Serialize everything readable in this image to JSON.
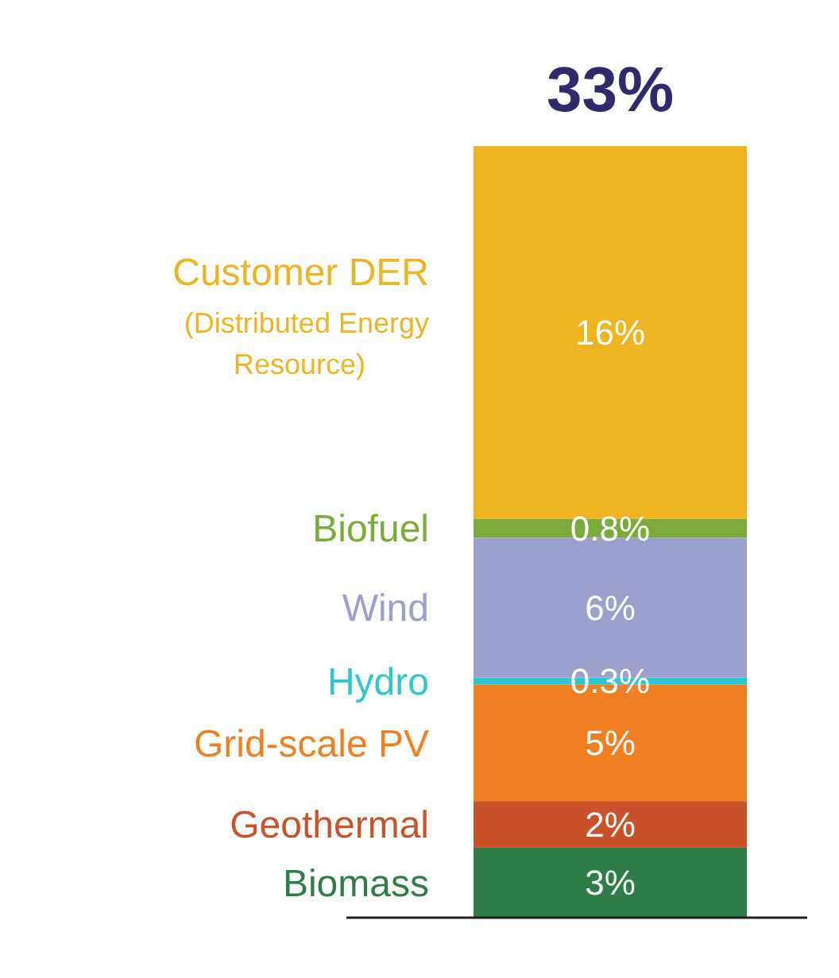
{
  "chart_data": {
    "type": "bar",
    "stacked": true,
    "categories": [
      null
    ],
    "data_labels": true,
    "totals": [
      "33%"
    ],
    "series": [
      {
        "name": "Biomass",
        "color": "#2e7d46",
        "values": [
          3
        ],
        "value_labels": [
          "3%"
        ]
      },
      {
        "name": "Geothermal",
        "color": "#c8532a",
        "values": [
          2
        ],
        "value_labels": [
          "2%"
        ]
      },
      {
        "name": "Grid-scale PV",
        "color": "#f07f21",
        "values": [
          5
        ],
        "value_labels": [
          "5%"
        ]
      },
      {
        "name": "Hydro",
        "color": "#2ec6cf",
        "values": [
          0.3
        ],
        "value_labels": [
          "0.3%"
        ]
      },
      {
        "name": "Wind",
        "color": "#9b9fcc",
        "values": [
          6
        ],
        "value_labels": [
          "6%"
        ]
      },
      {
        "name": "Biofuel",
        "color": "#7aab3a",
        "values": [
          0.8
        ],
        "value_labels": [
          "0.8%"
        ]
      },
      {
        "name": "Customer DER (Distributed Energy Resource)",
        "color": "#eeb422",
        "values": [
          16
        ],
        "value_labels": [
          "16%"
        ]
      }
    ]
  }
}
